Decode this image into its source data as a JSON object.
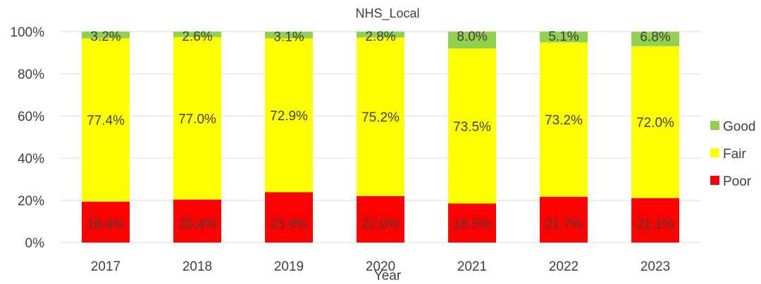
{
  "chart_data": {
    "type": "bar",
    "stacked": true,
    "percent": true,
    "title": "NHS_Local",
    "xlabel": "Year",
    "ylabel": "",
    "ylim": [
      0,
      100
    ],
    "yticks": [
      "0%",
      "20%",
      "40%",
      "60%",
      "80%",
      "100%"
    ],
    "categories": [
      "2017",
      "2018",
      "2019",
      "2020",
      "2021",
      "2022",
      "2023"
    ],
    "series": [
      {
        "name": "Poor",
        "color": "#ff0000",
        "values": [
          19.4,
          20.4,
          23.9,
          22.0,
          18.5,
          21.7,
          21.1
        ],
        "labels": [
          "19.4%",
          "20.4%",
          "23.9%",
          "22.0%",
          "18.5%",
          "21.7%",
          "21.1%"
        ]
      },
      {
        "name": "Fair",
        "color": "#ffff00",
        "values": [
          77.4,
          77.0,
          72.9,
          75.2,
          73.5,
          73.2,
          72.0
        ],
        "labels": [
          "77.4%",
          "77.0%",
          "72.9%",
          "75.2%",
          "73.5%",
          "73.2%",
          "72.0%"
        ]
      },
      {
        "name": "Good",
        "color": "#92d050",
        "values": [
          3.2,
          2.6,
          3.1,
          2.8,
          8.0,
          5.1,
          6.8
        ],
        "labels": [
          "3.2%",
          "2.6%",
          "3.1%",
          "2.8%",
          "8.0%",
          "5.1%",
          "6.8%"
        ]
      }
    ],
    "legend": {
      "position": "right",
      "order": [
        "Good",
        "Fair",
        "Poor"
      ]
    },
    "grid": true,
    "gridline_color": "#d9d9d9"
  }
}
